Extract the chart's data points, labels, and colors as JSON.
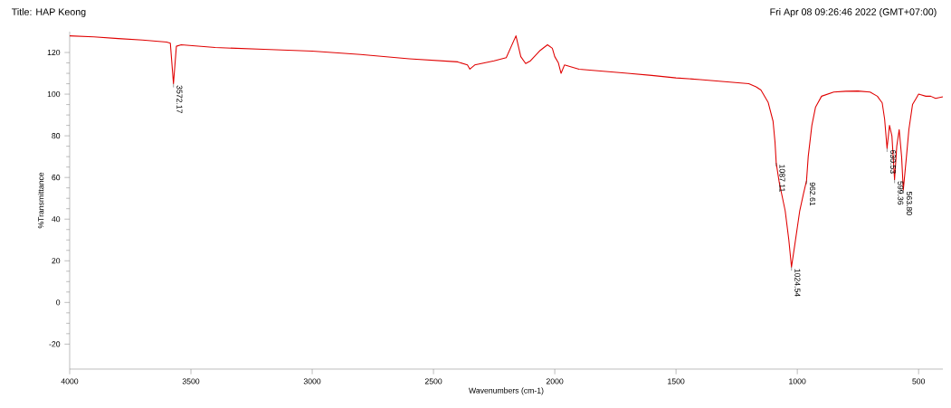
{
  "chart_data": {
    "type": "line",
    "title": "Title:  HAP Keong",
    "subtitle": "Fri Apr 08 09:26:46 2022 (GMT+07:00)",
    "xlabel": "Wavenumbers (cm-1)",
    "ylabel": "%Transmittance",
    "xlim": [
      4000,
      400
    ],
    "ylim": [
      -32,
      130
    ],
    "xticks": [
      4000,
      3500,
      3000,
      2500,
      2000,
      1500,
      1000,
      500
    ],
    "yticks": [
      -20,
      0,
      20,
      40,
      60,
      80,
      100,
      120
    ],
    "series": [
      {
        "color": "#e00000",
        "x": [
          4000,
          3900,
          3800,
          3700,
          3600,
          3585,
          3572,
          3560,
          3540,
          3400,
          3200,
          3000,
          2800,
          2600,
          2400,
          2360,
          2350,
          2330,
          2250,
          2200,
          2160,
          2140,
          2120,
          2100,
          2060,
          2030,
          2010,
          2000,
          1985,
          1974,
          1960,
          1900,
          1800,
          1700,
          1600,
          1500,
          1400,
          1300,
          1200,
          1170,
          1150,
          1120,
          1100,
          1092,
          1087,
          1075,
          1050,
          1035,
          1024,
          1010,
          990,
          975,
          962,
          955,
          940,
          925,
          900,
          850,
          800,
          750,
          700,
          670,
          650,
          640,
          630,
          620,
          610,
          599,
          590,
          580,
          570,
          563,
          550,
          540,
          525,
          510,
          500,
          470,
          450,
          430,
          400
        ],
        "values": [
          128,
          127.5,
          126.7,
          126,
          125,
          124.5,
          105,
          123,
          123.7,
          122.4,
          121.5,
          120.7,
          119,
          117,
          115.5,
          114,
          112,
          114,
          116,
          117.5,
          128,
          118,
          114.7,
          116,
          121,
          123.7,
          122,
          118,
          115,
          110,
          114,
          112,
          111,
          110,
          109,
          107.8,
          107,
          106,
          105,
          103.5,
          102,
          96,
          87,
          77,
          67,
          58,
          44,
          30,
          17,
          28,
          44,
          52,
          58.5,
          70,
          85,
          93.7,
          99,
          101,
          101.4,
          101.5,
          101,
          99,
          95.8,
          88,
          74,
          85,
          80,
          59,
          75,
          83,
          70,
          54,
          70,
          83,
          95,
          98,
          100,
          99,
          99,
          98,
          98.7
        ]
      }
    ],
    "annotations": [
      {
        "text": "3572.17",
        "x": 3572,
        "y": 105
      },
      {
        "text": "1087.11",
        "x": 1087,
        "y": 67
      },
      {
        "text": "1024.54",
        "x": 1024,
        "y": 17
      },
      {
        "text": "962.61",
        "x": 962,
        "y": 58.5
      },
      {
        "text": "630.53",
        "x": 630,
        "y": 74
      },
      {
        "text": "599.36",
        "x": 599,
        "y": 59
      },
      {
        "text": "563.80",
        "x": 563,
        "y": 54
      }
    ]
  }
}
